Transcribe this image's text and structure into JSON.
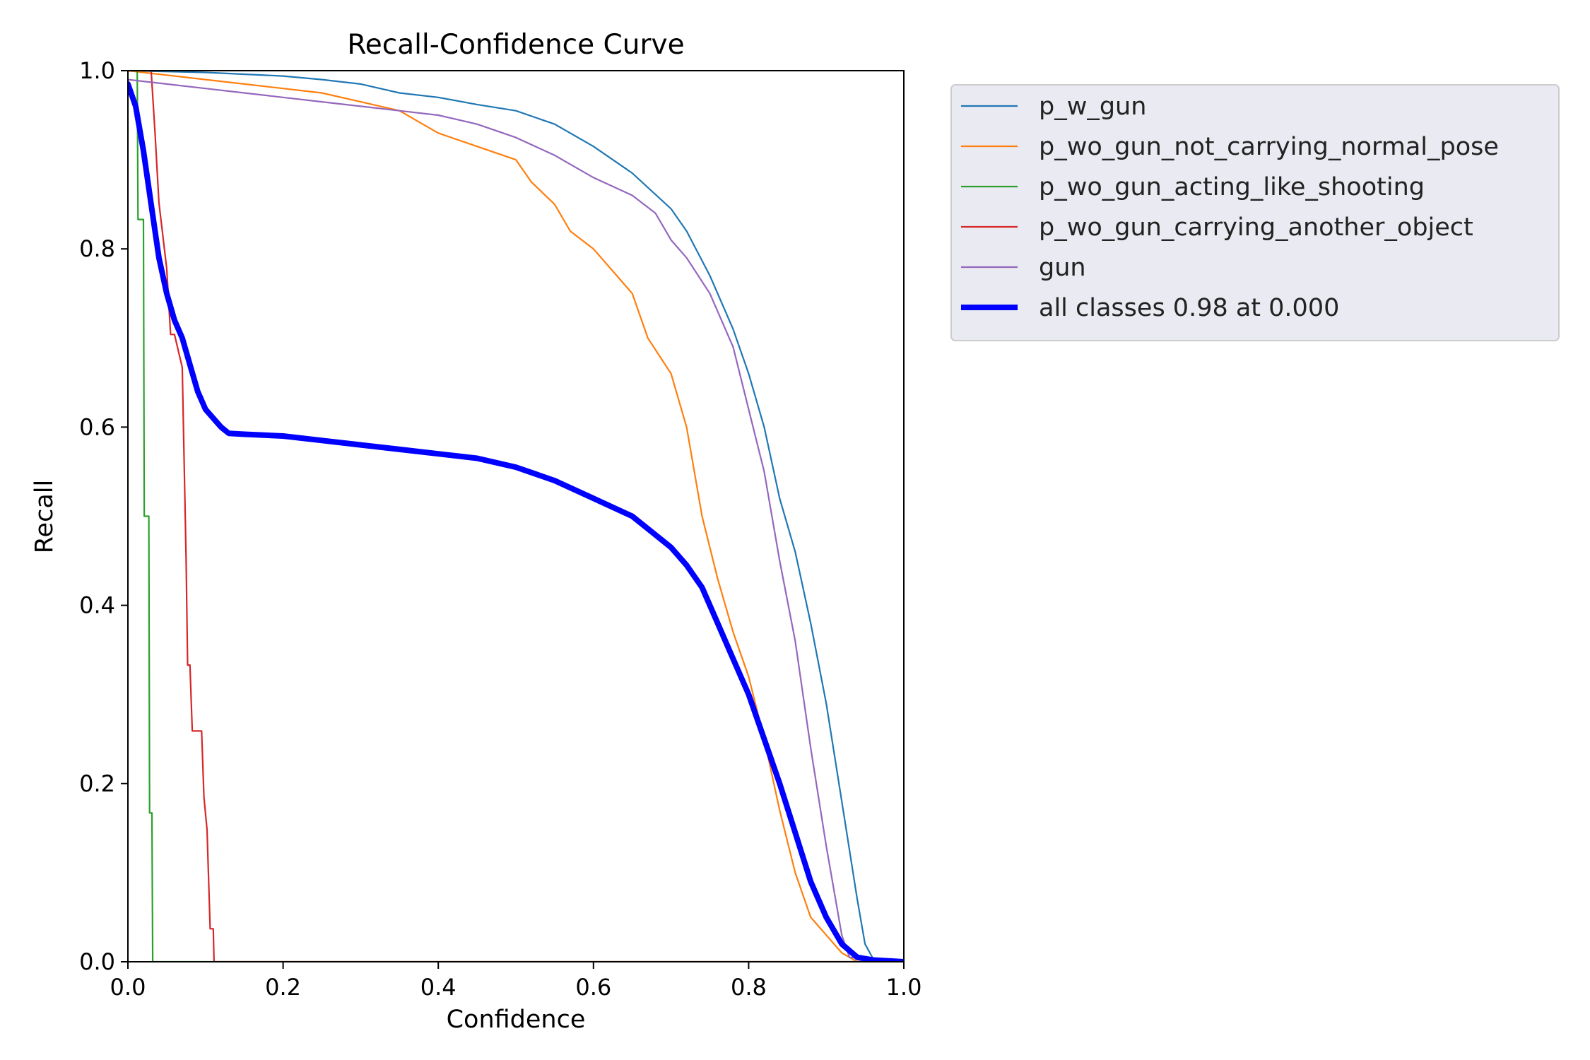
{
  "chart_data": {
    "type": "line",
    "title": "Recall-Confidence Curve",
    "xlabel": "Confidence",
    "ylabel": "Recall",
    "xlim": [
      0,
      1
    ],
    "ylim": [
      0,
      1
    ],
    "xticks": [
      "0.0",
      "0.2",
      "0.4",
      "0.6",
      "0.8",
      "1.0"
    ],
    "yticks": [
      "0.0",
      "0.2",
      "0.4",
      "0.6",
      "0.8",
      "1.0"
    ],
    "grid": false,
    "legend_position": "outside-top-right",
    "series": [
      {
        "name": "p_w_gun",
        "color": "#1f77b4",
        "width": "thin",
        "points": [
          [
            0,
            1.0
          ],
          [
            0.1,
            0.998
          ],
          [
            0.2,
            0.994
          ],
          [
            0.25,
            0.99
          ],
          [
            0.3,
            0.985
          ],
          [
            0.35,
            0.975
          ],
          [
            0.4,
            0.97
          ],
          [
            0.45,
            0.962
          ],
          [
            0.5,
            0.955
          ],
          [
            0.55,
            0.94
          ],
          [
            0.6,
            0.915
          ],
          [
            0.65,
            0.885
          ],
          [
            0.7,
            0.845
          ],
          [
            0.72,
            0.82
          ],
          [
            0.75,
            0.77
          ],
          [
            0.78,
            0.71
          ],
          [
            0.8,
            0.66
          ],
          [
            0.82,
            0.6
          ],
          [
            0.84,
            0.52
          ],
          [
            0.86,
            0.46
          ],
          [
            0.88,
            0.38
          ],
          [
            0.9,
            0.29
          ],
          [
            0.92,
            0.18
          ],
          [
            0.94,
            0.07
          ],
          [
            0.95,
            0.02
          ],
          [
            0.96,
            0.004
          ],
          [
            1.0,
            0.0
          ]
        ]
      },
      {
        "name": "p_wo_gun_not_carrying_normal_pose",
        "color": "#ff7f0e",
        "width": "thin",
        "points": [
          [
            0,
            1.0
          ],
          [
            0.05,
            0.995
          ],
          [
            0.1,
            0.99
          ],
          [
            0.15,
            0.985
          ],
          [
            0.2,
            0.98
          ],
          [
            0.25,
            0.975
          ],
          [
            0.3,
            0.965
          ],
          [
            0.35,
            0.955
          ],
          [
            0.4,
            0.93
          ],
          [
            0.45,
            0.915
          ],
          [
            0.5,
            0.9
          ],
          [
            0.52,
            0.875
          ],
          [
            0.55,
            0.85
          ],
          [
            0.57,
            0.82
          ],
          [
            0.6,
            0.8
          ],
          [
            0.63,
            0.77
          ],
          [
            0.65,
            0.75
          ],
          [
            0.67,
            0.7
          ],
          [
            0.7,
            0.66
          ],
          [
            0.72,
            0.6
          ],
          [
            0.74,
            0.5
          ],
          [
            0.76,
            0.43
          ],
          [
            0.78,
            0.37
          ],
          [
            0.8,
            0.32
          ],
          [
            0.82,
            0.25
          ],
          [
            0.84,
            0.17
          ],
          [
            0.86,
            0.1
          ],
          [
            0.88,
            0.05
          ],
          [
            0.9,
            0.03
          ],
          [
            0.92,
            0.01
          ],
          [
            0.94,
            0.0
          ],
          [
            1.0,
            0.0
          ]
        ]
      },
      {
        "name": "p_wo_gun_acting_like_shooting",
        "color": "#2ca02c",
        "width": "thin",
        "points": [
          [
            0,
            1.0
          ],
          [
            0.012,
            1.0
          ],
          [
            0.013,
            0.833
          ],
          [
            0.02,
            0.833
          ],
          [
            0.021,
            0.5
          ],
          [
            0.027,
            0.5
          ],
          [
            0.028,
            0.167
          ],
          [
            0.031,
            0.167
          ],
          [
            0.032,
            0.0
          ],
          [
            1.0,
            0.0
          ]
        ]
      },
      {
        "name": "p_wo_gun_carrying_another_object",
        "color": "#d62728",
        "width": "thin",
        "points": [
          [
            0,
            1.0
          ],
          [
            0.03,
            1.0
          ],
          [
            0.035,
            0.93
          ],
          [
            0.04,
            0.852
          ],
          [
            0.045,
            0.815
          ],
          [
            0.05,
            0.778
          ],
          [
            0.055,
            0.704
          ],
          [
            0.06,
            0.704
          ],
          [
            0.07,
            0.667
          ],
          [
            0.075,
            0.45
          ],
          [
            0.077,
            0.333
          ],
          [
            0.08,
            0.333
          ],
          [
            0.083,
            0.259
          ],
          [
            0.095,
            0.259
          ],
          [
            0.098,
            0.185
          ],
          [
            0.102,
            0.148
          ],
          [
            0.106,
            0.037
          ],
          [
            0.11,
            0.037
          ],
          [
            0.111,
            0.0
          ],
          [
            1.0,
            0.0
          ]
        ]
      },
      {
        "name": "gun",
        "color": "#9467bd",
        "width": "thin",
        "points": [
          [
            0,
            0.99
          ],
          [
            0.05,
            0.985
          ],
          [
            0.1,
            0.98
          ],
          [
            0.15,
            0.975
          ],
          [
            0.2,
            0.97
          ],
          [
            0.25,
            0.965
          ],
          [
            0.3,
            0.96
          ],
          [
            0.35,
            0.955
          ],
          [
            0.4,
            0.95
          ],
          [
            0.45,
            0.94
          ],
          [
            0.5,
            0.925
          ],
          [
            0.55,
            0.905
          ],
          [
            0.6,
            0.88
          ],
          [
            0.65,
            0.86
          ],
          [
            0.68,
            0.84
          ],
          [
            0.7,
            0.81
          ],
          [
            0.72,
            0.79
          ],
          [
            0.75,
            0.75
          ],
          [
            0.78,
            0.69
          ],
          [
            0.8,
            0.62
          ],
          [
            0.82,
            0.55
          ],
          [
            0.84,
            0.45
          ],
          [
            0.86,
            0.36
          ],
          [
            0.88,
            0.24
          ],
          [
            0.9,
            0.13
          ],
          [
            0.92,
            0.03
          ],
          [
            0.93,
            0.005
          ],
          [
            1.0,
            0.0
          ]
        ]
      },
      {
        "name": "all classes 0.98 at 0.000",
        "color": "#0000ff",
        "width": "thick",
        "points": [
          [
            0,
            0.985
          ],
          [
            0.01,
            0.96
          ],
          [
            0.02,
            0.91
          ],
          [
            0.03,
            0.85
          ],
          [
            0.04,
            0.79
          ],
          [
            0.05,
            0.75
          ],
          [
            0.06,
            0.72
          ],
          [
            0.07,
            0.7
          ],
          [
            0.08,
            0.67
          ],
          [
            0.09,
            0.64
          ],
          [
            0.1,
            0.62
          ],
          [
            0.12,
            0.6
          ],
          [
            0.13,
            0.593
          ],
          [
            0.15,
            0.592
          ],
          [
            0.2,
            0.59
          ],
          [
            0.25,
            0.585
          ],
          [
            0.3,
            0.58
          ],
          [
            0.35,
            0.575
          ],
          [
            0.4,
            0.57
          ],
          [
            0.45,
            0.565
          ],
          [
            0.5,
            0.555
          ],
          [
            0.55,
            0.54
          ],
          [
            0.6,
            0.52
          ],
          [
            0.65,
            0.5
          ],
          [
            0.7,
            0.465
          ],
          [
            0.72,
            0.445
          ],
          [
            0.74,
            0.42
          ],
          [
            0.76,
            0.38
          ],
          [
            0.78,
            0.34
          ],
          [
            0.8,
            0.3
          ],
          [
            0.82,
            0.25
          ],
          [
            0.84,
            0.2
          ],
          [
            0.86,
            0.145
          ],
          [
            0.88,
            0.09
          ],
          [
            0.9,
            0.05
          ],
          [
            0.92,
            0.02
          ],
          [
            0.94,
            0.005
          ],
          [
            0.96,
            0.002
          ],
          [
            1.0,
            0.0
          ]
        ]
      }
    ]
  }
}
